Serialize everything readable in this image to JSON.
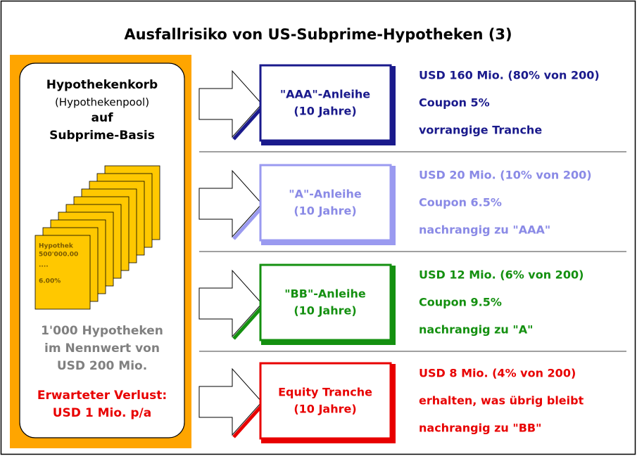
{
  "title": "Ausfallrisiko von US-Subprime-Hypotheken (3)",
  "pool": {
    "heading": [
      "Hypothekenkorb",
      "(Hypothekenpool)",
      "auf",
      "Subprime-Basis"
    ],
    "document": [
      "Hypothek",
      "500'000.00",
      "....",
      "6.00%"
    ],
    "count": [
      "1'000 Hypotheken",
      "im Nennwert von",
      "USD 200 Mio."
    ],
    "loss": [
      "Erwarteter Verlust:",
      "USD 1 Mio. p/a"
    ]
  },
  "tranches": [
    {
      "name": [
        "\"AAA\"-Anleihe",
        "(10 Jahre)"
      ],
      "details": [
        "USD 160 Mio. (80% von 200)",
        "Coupon 5%",
        "vorrangige Tranche"
      ]
    },
    {
      "name": [
        "\"A\"-Anleihe",
        "(10 Jahre)"
      ],
      "details": [
        "USD 20 Mio. (10% von 200)",
        "Coupon 6.5%",
        "nachrangig zu \"AAA\""
      ]
    },
    {
      "name": [
        "\"BB\"-Anleihe",
        "(10 Jahre)"
      ],
      "details": [
        "USD 12 Mio. (6% von 200)",
        "Coupon 9.5%",
        "nachrangig zu \"A\""
      ]
    },
    {
      "name": [
        "Equity Tranche",
        "(10 Jahre)"
      ],
      "details": [
        "USD 8 Mio. (4% von 200)",
        "erhalten, was übrig bleibt",
        "nachrangig zu \"BB\""
      ]
    }
  ]
}
